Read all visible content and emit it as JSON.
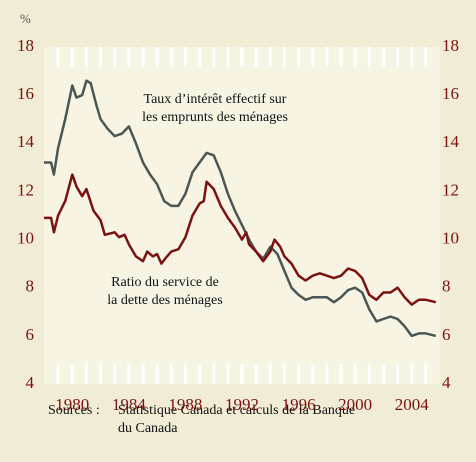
{
  "chart_data": {
    "type": "line",
    "unit_label": "%",
    "xlim": [
      1978,
      2006
    ],
    "ylim": [
      4,
      18
    ],
    "xticks": [
      1980,
      1984,
      1988,
      1992,
      1996,
      2000,
      2004
    ],
    "xminor_ticks": [
      1979,
      1980,
      1981,
      1982,
      1983,
      1984,
      1985,
      1986,
      1987,
      1988,
      1989,
      1990,
      1991,
      1992,
      1993,
      1994,
      1995,
      1996,
      1997,
      1998,
      1999,
      2000,
      2001,
      2002,
      2003,
      2004,
      2005
    ],
    "yticks": [
      4,
      6,
      8,
      10,
      12,
      14,
      16,
      18
    ],
    "series": [
      {
        "name": [
          "Taux d’intérêt effectif sur",
          "les emprunts des ménages"
        ],
        "color": "#4a5753",
        "x": [
          1978,
          1978.5,
          1978.7,
          1979,
          1979.5,
          1980,
          1980.3,
          1980.7,
          1981,
          1981.3,
          1981.7,
          1982,
          1982.5,
          1983,
          1983.5,
          1984,
          1984.5,
          1985,
          1985.5,
          1986,
          1986.5,
          1987,
          1987.5,
          1988,
          1988.5,
          1989,
          1989.5,
          1990,
          1990.5,
          1991,
          1991.5,
          1992,
          1992.5,
          1993,
          1993.5,
          1994,
          1994.5,
          1995,
          1995.5,
          1996,
          1996.5,
          1997,
          1997.5,
          1998,
          1998.5,
          1999,
          1999.5,
          2000,
          2000.5,
          2001,
          2001.5,
          2002,
          2002.5,
          2003,
          2003.5,
          2004,
          2004.5,
          2005,
          2005.7
        ],
        "values": [
          13.2,
          13.2,
          12.7,
          13.8,
          15.0,
          16.4,
          15.9,
          16.0,
          16.6,
          16.5,
          15.6,
          15.0,
          14.6,
          14.3,
          14.4,
          14.7,
          14.0,
          13.2,
          12.7,
          12.3,
          11.6,
          11.4,
          11.4,
          11.9,
          12.8,
          13.2,
          13.6,
          13.5,
          12.8,
          11.9,
          11.2,
          10.6,
          10.0,
          9.5,
          9.2,
          9.7,
          9.4,
          8.7,
          8.0,
          7.7,
          7.5,
          7.6,
          7.6,
          7.6,
          7.4,
          7.6,
          7.9,
          8.0,
          7.8,
          7.1,
          6.6,
          6.7,
          6.8,
          6.7,
          6.4,
          6.0,
          6.1,
          6.1,
          6.0
        ]
      },
      {
        "name": [
          "Ratio du service de",
          "la dette des ménages"
        ],
        "color": "#7a1212",
        "x": [
          1978,
          1978.5,
          1978.7,
          1979,
          1979.5,
          1980,
          1980.3,
          1980.7,
          1981,
          1981.5,
          1982,
          1982.3,
          1983,
          1983.3,
          1983.7,
          1984,
          1984.5,
          1985,
          1985.3,
          1985.7,
          1986,
          1986.3,
          1986.7,
          1987,
          1987.5,
          1988,
          1988.5,
          1989,
          1989.3,
          1989.5,
          1990,
          1990.5,
          1991,
          1991.5,
          1992,
          1992.3,
          1992.5,
          1993,
          1993.5,
          1994,
          1994.3,
          1994.7,
          1995,
          1995.5,
          1996,
          1996.5,
          1997,
          1997.5,
          1998,
          1998.5,
          1999,
          1999.5,
          2000,
          2000.5,
          2001,
          2001.5,
          2002,
          2002.5,
          2003,
          2003.5,
          2004,
          2004.5,
          2005,
          2005.7
        ],
        "values": [
          10.9,
          10.9,
          10.3,
          11.0,
          11.6,
          12.7,
          12.2,
          11.8,
          12.1,
          11.2,
          10.8,
          10.2,
          10.3,
          10.1,
          10.2,
          9.8,
          9.3,
          9.1,
          9.5,
          9.3,
          9.4,
          9.0,
          9.3,
          9.5,
          9.6,
          10.1,
          11.0,
          11.5,
          11.6,
          12.4,
          12.1,
          11.4,
          10.9,
          10.5,
          10.0,
          10.3,
          9.8,
          9.5,
          9.1,
          9.5,
          10.0,
          9.7,
          9.3,
          9.0,
          8.5,
          8.3,
          8.5,
          8.6,
          8.5,
          8.4,
          8.5,
          8.8,
          8.7,
          8.4,
          7.7,
          7.5,
          7.8,
          7.8,
          8.0,
          7.6,
          7.3,
          7.5,
          7.5,
          7.4
        ]
      }
    ],
    "source_label": "Sources :",
    "source": [
      "Statistique Canada et calculs de la Banque",
      "du Canada"
    ]
  }
}
